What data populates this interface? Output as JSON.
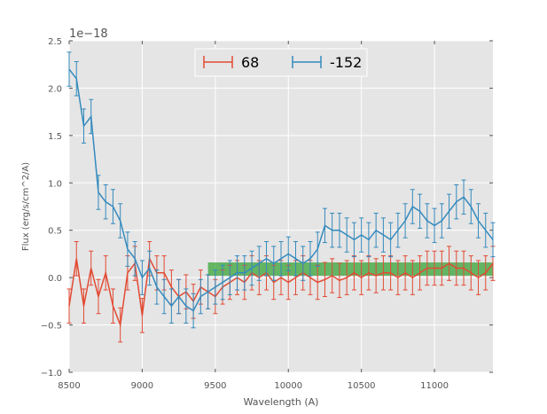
{
  "chart_data": {
    "type": "line",
    "title": "",
    "xlabel": "Wavelength (A)",
    "ylabel": "Flux (erg/s/cm^2/A)",
    "offset_label": "1e−18",
    "xlim": [
      8500,
      11400
    ],
    "ylim": [
      -1.0,
      2.5
    ],
    "xticks": [
      8500,
      9000,
      9500,
      10000,
      10500,
      11000
    ],
    "yticks": [
      -1.0,
      -0.5,
      0.0,
      0.5,
      1.0,
      1.5,
      2.0,
      2.5
    ],
    "ytick_labels": [
      "−1.0",
      "−0.5",
      "0.0",
      "0.5",
      "1.0",
      "1.5",
      "2.0",
      "2.5"
    ],
    "grid": true,
    "legend_position": "top-center",
    "band": {
      "x": [
        9450,
        11400
      ],
      "y": [
        0.02,
        0.16
      ],
      "color": "#2ca02c"
    },
    "series": [
      {
        "name": "68",
        "color": "#e24a33",
        "x": [
          8500,
          8550,
          8600,
          8650,
          8700,
          8750,
          8800,
          8850,
          8900,
          8950,
          9000,
          9050,
          9100,
          9150,
          9200,
          9250,
          9300,
          9350,
          9400,
          9450,
          9500,
          9550,
          9600,
          9650,
          9700,
          9750,
          9800,
          9850,
          9900,
          9950,
          10000,
          10050,
          10100,
          10150,
          10200,
          10250,
          10300,
          10350,
          10400,
          10450,
          10500,
          10550,
          10600,
          10650,
          10700,
          10750,
          10800,
          10850,
          10900,
          10950,
          11000,
          11050,
          11100,
          11150,
          11200,
          11250,
          11300,
          11350,
          11400
        ],
        "y": [
          -0.3,
          0.2,
          -0.3,
          0.1,
          -0.2,
          0.05,
          -0.3,
          -0.5,
          0.05,
          0.15,
          -0.4,
          0.2,
          0.05,
          0.05,
          -0.1,
          -0.2,
          -0.15,
          -0.25,
          -0.1,
          -0.15,
          -0.2,
          -0.1,
          -0.05,
          0.0,
          -0.05,
          0.05,
          0.0,
          0.05,
          -0.05,
          0.0,
          -0.05,
          0.0,
          0.05,
          0.0,
          -0.05,
          -0.02,
          0.02,
          -0.03,
          0.0,
          0.05,
          0.0,
          0.05,
          0.02,
          0.05,
          0.05,
          0.0,
          0.05,
          0.0,
          0.05,
          0.1,
          0.1,
          0.1,
          0.15,
          0.1,
          0.1,
          0.05,
          0.0,
          0.05,
          0.15
        ],
        "err": 0.18
      },
      {
        "name": "-152",
        "color": "#348abd",
        "x": [
          8500,
          8550,
          8600,
          8650,
          8700,
          8750,
          8800,
          8850,
          8900,
          8950,
          9000,
          9050,
          9100,
          9150,
          9200,
          9250,
          9300,
          9350,
          9400,
          9450,
          9500,
          9550,
          9600,
          9650,
          9700,
          9750,
          9800,
          9850,
          9900,
          9950,
          10000,
          10050,
          10100,
          10150,
          10200,
          10250,
          10300,
          10350,
          10400,
          10450,
          10500,
          10550,
          10600,
          10650,
          10700,
          10750,
          10800,
          10850,
          10900,
          10950,
          11000,
          11050,
          11100,
          11150,
          11200,
          11250,
          11300,
          11350,
          11400
        ],
        "y": [
          2.2,
          2.1,
          1.6,
          1.7,
          0.9,
          0.8,
          0.75,
          0.6,
          0.3,
          0.2,
          0.0,
          0.1,
          -0.1,
          -0.2,
          -0.3,
          -0.2,
          -0.3,
          -0.35,
          -0.2,
          -0.15,
          -0.1,
          -0.05,
          0.0,
          0.05,
          0.05,
          0.1,
          0.15,
          0.2,
          0.15,
          0.2,
          0.25,
          0.2,
          0.15,
          0.2,
          0.3,
          0.55,
          0.5,
          0.5,
          0.45,
          0.4,
          0.45,
          0.4,
          0.5,
          0.45,
          0.4,
          0.5,
          0.6,
          0.75,
          0.7,
          0.6,
          0.55,
          0.6,
          0.7,
          0.8,
          0.85,
          0.75,
          0.6,
          0.5,
          0.4
        ],
        "err": 0.18
      }
    ]
  }
}
